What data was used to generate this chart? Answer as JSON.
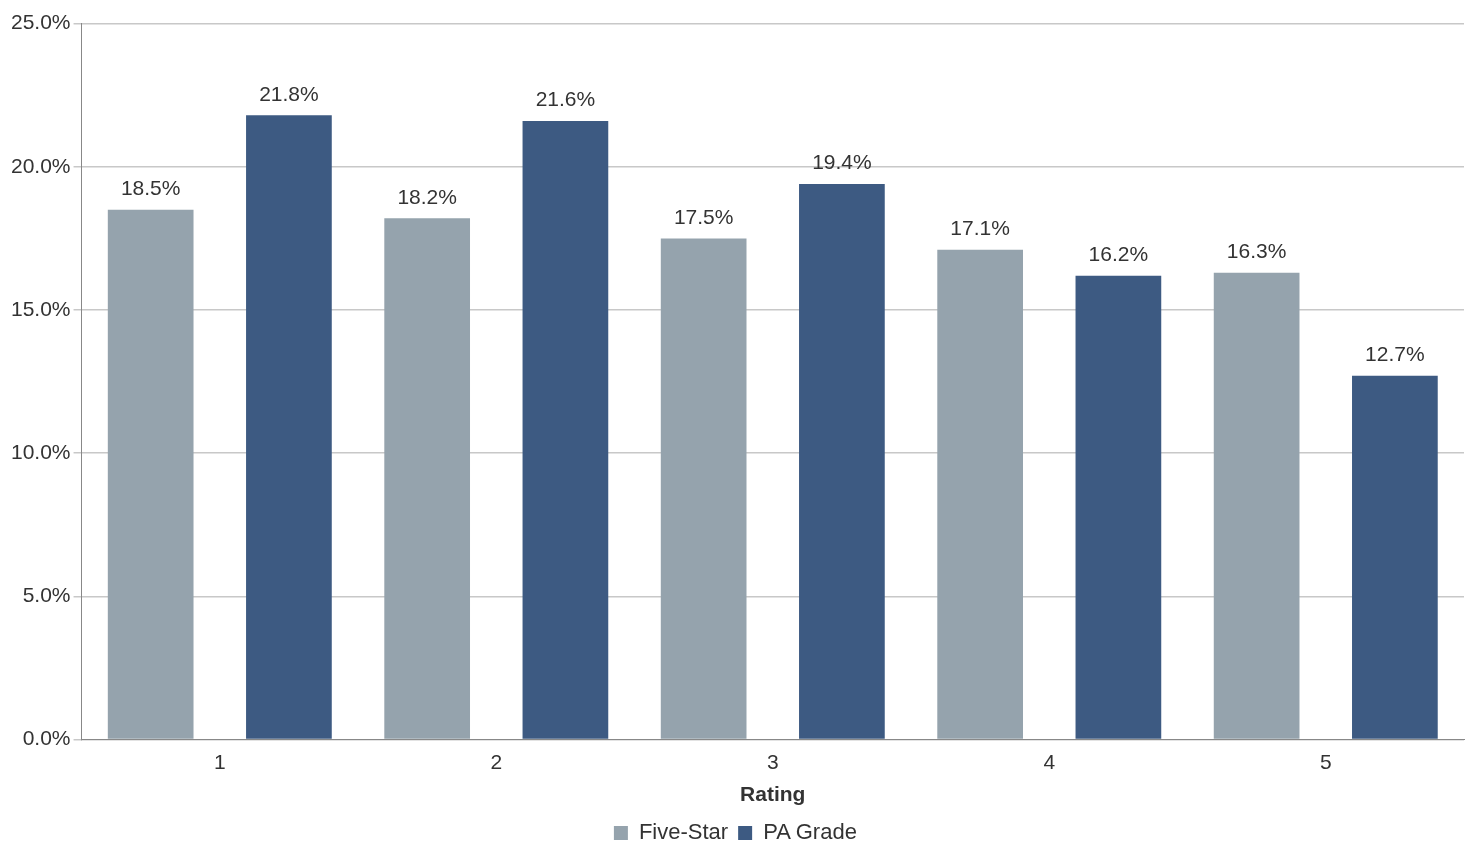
{
  "chart_data": {
    "type": "bar",
    "xlabel": "Rating",
    "categories": [
      "1",
      "2",
      "3",
      "4",
      "5"
    ],
    "series": [
      {
        "name": "Five-Star",
        "color": "#95a3ad",
        "values": [
          18.5,
          18.2,
          17.5,
          17.1,
          16.3
        ],
        "value_labels": [
          "18.5%",
          "18.2%",
          "17.5%",
          "17.1%",
          "16.3%"
        ]
      },
      {
        "name": "PA Grade",
        "color": "#3d5a82",
        "values": [
          21.8,
          21.6,
          19.4,
          16.2,
          12.7
        ],
        "value_labels": [
          "21.8%",
          "21.6%",
          "19.4%",
          "16.2%",
          "12.7%"
        ]
      }
    ],
    "ylim": [
      0,
      25
    ],
    "yticks": [
      {
        "value": 0,
        "label": "0.0%"
      },
      {
        "value": 5,
        "label": "5.0%"
      },
      {
        "value": 10,
        "label": "10.0%"
      },
      {
        "value": 15,
        "label": "15.0%"
      },
      {
        "value": 20,
        "label": "20.0%"
      },
      {
        "value": 25,
        "label": "25.0%"
      }
    ],
    "grid": "y",
    "legend": "bottom"
  }
}
